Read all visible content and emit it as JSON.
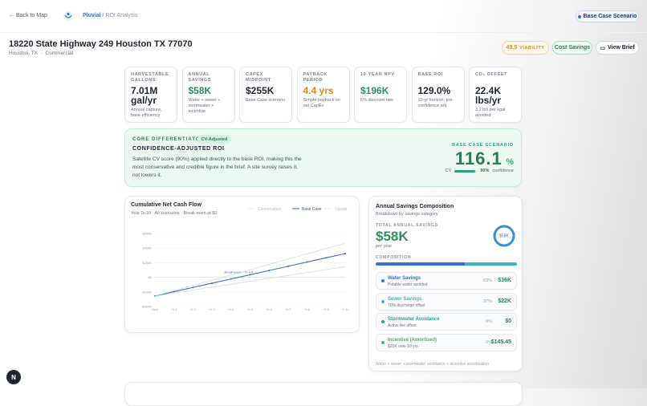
{
  "header": {
    "back": "Back to Map",
    "brand": "Pluvial",
    "breadcrumb": "/ ROI Analysis",
    "scenario": "Base Case Scenario"
  },
  "property": {
    "address": "18220 State Highway 249 Houston TX 77070",
    "city": "Houston, TX",
    "type": "Commercial",
    "viability_score": "49.5",
    "viability_label": "VIABILITY",
    "buttons": [
      "Cost Savings",
      "View Brief"
    ]
  },
  "metrics": [
    {
      "label": "HARVESTABLE GALLONS",
      "value": "7.01M gal/yr",
      "note": "Annual capture, base efficiency",
      "color": "#1f2430"
    },
    {
      "label": "ANNUAL SAVINGS",
      "value": "$58K",
      "note": "Water + sewer + stormwater + incentive",
      "color": "#2f8f5b"
    },
    {
      "label": "CAPEX MIDPOINT",
      "value": "$255K",
      "note": "Base Case scenario",
      "color": "#1f2430"
    },
    {
      "label": "PAYBACK PERIOD",
      "value": "4.4 yrs",
      "note": "Simple payback on net CapEx",
      "color": "#d98a1c"
    },
    {
      "label": "10-YEAR NPV",
      "value": "$196K",
      "note": "5% discount rate",
      "color": "#2f8f5b"
    },
    {
      "label": "BASE ROI",
      "value": "129.0%",
      "note": "10-yr horizon, pre-confidence adj.",
      "color": "#1f2430"
    },
    {
      "label": "CO₂ OFFSET",
      "value": "22.4K lbs/yr",
      "note": "3.2 lbs per kgal avoided",
      "color": "#1f2430"
    }
  ],
  "differentiator": {
    "kicker": "CORE DIFFERENTIATOR",
    "badge": "CV-Adjusted",
    "title": "CONFIDENCE-ADJUSTED ROI",
    "text": "Satellite CV score (90%) applied directly to the base ROI, making this the most conservative and credible figure in the brief. A site survey raises it, not lowers it.",
    "scenario": "BASE CASE SCENARIO",
    "roi": "116.1",
    "roi_unit": "%",
    "cv_label": "CV",
    "cv_value": "90%",
    "cv_note": "confidence"
  },
  "cash_flow": {
    "type": "line",
    "title": "Cumulative Net Cash Flow",
    "subtitle": "Year 0–10 · All scenarios · Break-even at $0",
    "categories": [
      "Now",
      "Yr 1",
      "Yr 2",
      "Yr 3",
      "Yr 4",
      "Yr 5",
      "Yr 6",
      "Yr 7",
      "Yr 8",
      "Yr 9",
      "Yr 10"
    ],
    "series": [
      {
        "name": "Conservative",
        "color": "#cdd6e4",
        "values": [
          -255000,
          -215000,
          -175000,
          -135000,
          -95000,
          -55000,
          -15000,
          25000,
          65000,
          105000,
          145000
        ]
      },
      {
        "name": "Base Case",
        "color": "#3b6fd4",
        "values": [
          -255000,
          -197000,
          -139000,
          -81000,
          -23000,
          35000,
          93000,
          151000,
          209000,
          267000,
          325000
        ]
      },
      {
        "name": "Upside",
        "color": "#cdd6e4",
        "values": [
          -255000,
          -183000,
          -111000,
          -39000,
          33000,
          105000,
          177000,
          249000,
          321000,
          393000,
          465000
        ]
      }
    ],
    "ylim": [
      -400000,
      600000
    ],
    "yticks": [
      {
        "value": -400000,
        "label": "-$400K"
      },
      {
        "value": -200000,
        "label": "-$200K"
      },
      {
        "value": 0,
        "label": "$0"
      },
      {
        "value": 200000,
        "label": "$200K"
      },
      {
        "value": 400000,
        "label": "$400K"
      },
      {
        "value": 600000,
        "label": "$600K"
      }
    ],
    "annotation": "Break-even ~ Yr 4.4"
  },
  "savings": {
    "title": "Annual Savings Composition",
    "subtitle": "Breakdown by savings category",
    "total_label": "TOTAL ANNUAL SAVINGS",
    "total": "$58K",
    "per": "per year",
    "donut_label": "$58K",
    "composition_label": "COMPOSITION",
    "items": [
      {
        "name": "Water Savings",
        "note": "Potable water avoided",
        "pct": "63%",
        "amount": "$36K",
        "color": "#3b6fd4"
      },
      {
        "name": "Sewer Savings",
        "note": "70% discharge offset",
        "pct": "37%",
        "amount": "$22K",
        "color": "#3bb3c9"
      },
      {
        "name": "Stormwater Avoidance",
        "note": "Active fee offset",
        "pct": "0%",
        "amount": "$0",
        "color": "#2f9e8f"
      },
      {
        "name": "Incentive (Amortized)",
        "note": "$25K over 10 yrs",
        "pct": "0%",
        "amount": "$145.45",
        "color": "#3fb37a"
      }
    ],
    "footer": "Water + sewer + stormwater avoidance + incentive amortization"
  },
  "badge": "N"
}
